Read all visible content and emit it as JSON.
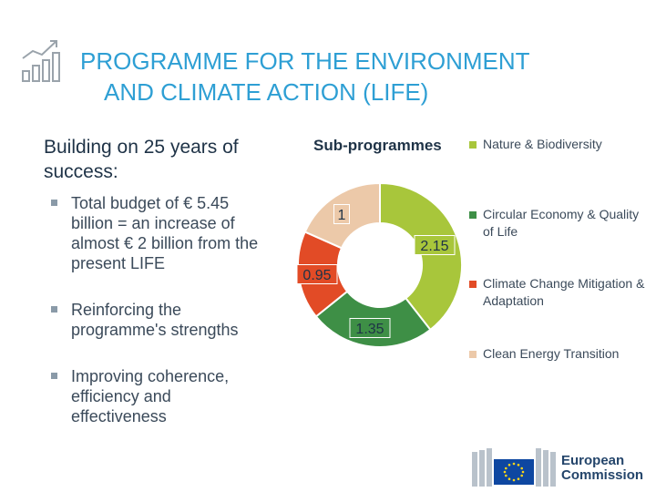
{
  "header": {
    "title_line1": "PROGRAMME FOR THE ENVIRONMENT",
    "title_line2": "AND CLIMATE ACTION (LIFE)"
  },
  "left": {
    "subheading": "Building on 25 years of success:",
    "bullets": [
      "Total budget of € 5.45 billion = an increase of almost € 2 billion from the present LIFE",
      "Reinforcing the programme's strengths",
      "Improving coherence, efficiency and effectiveness"
    ]
  },
  "chart_data": {
    "type": "pie",
    "title": "Sub-programmes",
    "categories": [
      "Nature & Biodiversity",
      "Circular Economy & Quality of Life",
      "Climate Change Mitigation & Adaptation",
      "Clean Energy Transition"
    ],
    "values": [
      2.15,
      1.35,
      0.95,
      1
    ],
    "colors": [
      "#a8c63b",
      "#3e8f46",
      "#e24b26",
      "#ecc9a9"
    ],
    "legend_position": "right"
  },
  "logo": {
    "name_line1": "European",
    "name_line2": "Commission"
  }
}
